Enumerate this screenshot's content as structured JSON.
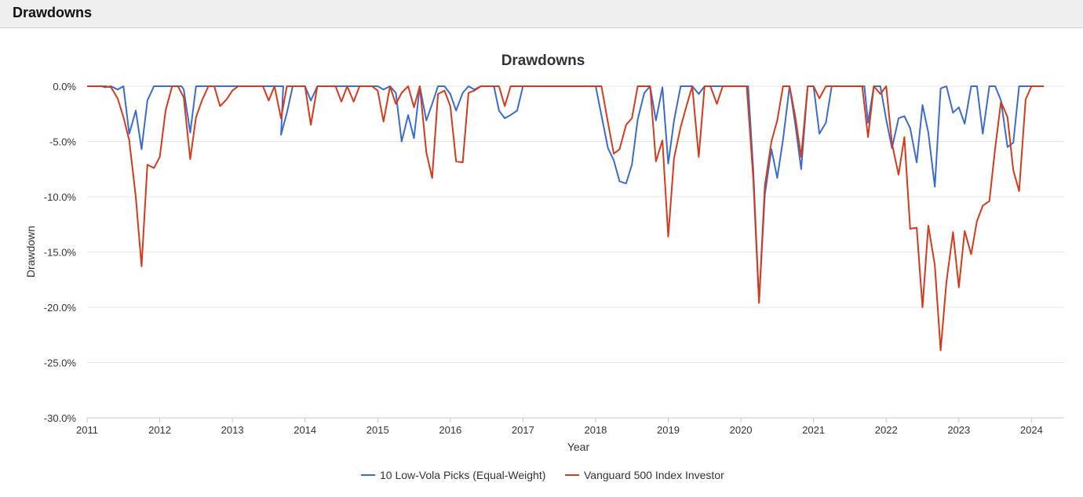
{
  "header": {
    "title": "Drawdowns"
  },
  "chart_data": {
    "type": "line",
    "title": "Drawdowns",
    "xlabel": "Year",
    "ylabel": "Drawdown",
    "ylim": [
      -30,
      0
    ],
    "yticks": [
      "0.0%",
      "-5.0%",
      "-10.0%",
      "-15.0%",
      "-20.0%",
      "-25.0%",
      "-30.0%"
    ],
    "xticks": [
      "2011",
      "2012",
      "2013",
      "2014",
      "2015",
      "2016",
      "2017",
      "2018",
      "2019",
      "2020",
      "2021",
      "2022",
      "2023",
      "2024"
    ],
    "legend_position": "bottom",
    "series": [
      {
        "name": "10 Low-Vola Picks (Equal-Weight)",
        "color": "#3a6ccf",
        "points": [
          [
            2011.0,
            0
          ],
          [
            2011.2,
            0
          ],
          [
            2011.25,
            -0.1
          ],
          [
            2011.33,
            0
          ],
          [
            2011.42,
            -0.3
          ],
          [
            2011.5,
            0
          ],
          [
            2011.58,
            -4.3
          ],
          [
            2011.67,
            -2.2
          ],
          [
            2011.75,
            -5.7
          ],
          [
            2011.83,
            -1.3
          ],
          [
            2011.92,
            0
          ],
          [
            2012.0,
            0
          ],
          [
            2012.3,
            0
          ],
          [
            2012.33,
            -0.3
          ],
          [
            2012.42,
            -4.2
          ],
          [
            2012.5,
            0
          ],
          [
            2012.6,
            0
          ],
          [
            2013.7,
            0
          ],
          [
            2013.67,
            -4.4
          ],
          [
            2013.75,
            -2.4
          ],
          [
            2013.83,
            0
          ],
          [
            2014.0,
            0
          ],
          [
            2014.08,
            -1.3
          ],
          [
            2014.17,
            0
          ],
          [
            2015.0,
            0
          ],
          [
            2015.08,
            -0.3
          ],
          [
            2015.17,
            0
          ],
          [
            2015.25,
            -0.6
          ],
          [
            2015.33,
            -5.0
          ],
          [
            2015.42,
            -2.6
          ],
          [
            2015.5,
            -4.7
          ],
          [
            2015.58,
            0
          ],
          [
            2015.67,
            -3.1
          ],
          [
            2015.75,
            -1.6
          ],
          [
            2015.83,
            0
          ],
          [
            2015.92,
            0
          ],
          [
            2016.0,
            -0.7
          ],
          [
            2016.08,
            -2.2
          ],
          [
            2016.17,
            -0.6
          ],
          [
            2016.25,
            0
          ],
          [
            2016.33,
            -0.3
          ],
          [
            2016.42,
            0
          ],
          [
            2016.6,
            0
          ],
          [
            2016.67,
            -2.2
          ],
          [
            2016.75,
            -2.9
          ],
          [
            2016.83,
            -2.6
          ],
          [
            2016.92,
            -2.2
          ],
          [
            2017.0,
            0
          ],
          [
            2018.0,
            0
          ],
          [
            2018.17,
            -5.6
          ],
          [
            2018.25,
            -6.7
          ],
          [
            2018.33,
            -8.6
          ],
          [
            2018.42,
            -8.8
          ],
          [
            2018.5,
            -7.1
          ],
          [
            2018.58,
            -3.0
          ],
          [
            2018.67,
            -0.6
          ],
          [
            2018.75,
            0
          ],
          [
            2018.83,
            -3.1
          ],
          [
            2018.92,
            -0.1
          ],
          [
            2019.0,
            -7.0
          ],
          [
            2019.08,
            -3.1
          ],
          [
            2019.17,
            0
          ],
          [
            2019.33,
            0
          ],
          [
            2019.42,
            -0.7
          ],
          [
            2019.5,
            0
          ],
          [
            2020.1,
            0
          ],
          [
            2020.17,
            -7.5
          ],
          [
            2020.25,
            -19.5
          ],
          [
            2020.33,
            -9.8
          ],
          [
            2020.42,
            -5.7
          ],
          [
            2020.5,
            -8.3
          ],
          [
            2020.58,
            -4.8
          ],
          [
            2020.67,
            0
          ],
          [
            2020.75,
            -3.5
          ],
          [
            2020.83,
            -7.5
          ],
          [
            2020.92,
            0
          ],
          [
            2021.0,
            0
          ],
          [
            2021.08,
            -4.3
          ],
          [
            2021.17,
            -3.3
          ],
          [
            2021.25,
            0
          ],
          [
            2021.7,
            0
          ],
          [
            2021.75,
            -3.3
          ],
          [
            2021.83,
            0
          ],
          [
            2021.92,
            0
          ],
          [
            2022.0,
            -3.0
          ],
          [
            2022.08,
            -5.6
          ],
          [
            2022.17,
            -2.9
          ],
          [
            2022.25,
            -2.7
          ],
          [
            2022.33,
            -3.8
          ],
          [
            2022.42,
            -6.9
          ],
          [
            2022.5,
            -1.7
          ],
          [
            2022.58,
            -4.2
          ],
          [
            2022.67,
            -9.1
          ],
          [
            2022.75,
            -0.2
          ],
          [
            2022.83,
            0
          ],
          [
            2022.92,
            -2.4
          ],
          [
            2023.0,
            -1.9
          ],
          [
            2023.08,
            -3.4
          ],
          [
            2023.17,
            0
          ],
          [
            2023.25,
            0
          ],
          [
            2023.33,
            -4.3
          ],
          [
            2023.42,
            0
          ],
          [
            2023.5,
            0
          ],
          [
            2023.58,
            -1.3
          ],
          [
            2023.67,
            -5.5
          ],
          [
            2023.75,
            -5.1
          ],
          [
            2023.83,
            0
          ],
          [
            2024.17,
            0
          ]
        ]
      },
      {
        "name": "Vanguard 500 Index Investor",
        "color": "#d63a1c",
        "points": [
          [
            2011.0,
            0
          ],
          [
            2011.25,
            0
          ],
          [
            2011.33,
            -0.1
          ],
          [
            2011.42,
            -1.1
          ],
          [
            2011.5,
            -2.8
          ],
          [
            2011.58,
            -4.9
          ],
          [
            2011.67,
            -10.0
          ],
          [
            2011.75,
            -16.3
          ],
          [
            2011.83,
            -7.1
          ],
          [
            2011.92,
            -7.4
          ],
          [
            2012.0,
            -6.4
          ],
          [
            2012.08,
            -2.2
          ],
          [
            2012.17,
            0
          ],
          [
            2012.25,
            0
          ],
          [
            2012.33,
            -1.0
          ],
          [
            2012.42,
            -6.6
          ],
          [
            2012.5,
            -2.8
          ],
          [
            2012.58,
            -1.3
          ],
          [
            2012.67,
            0
          ],
          [
            2012.75,
            0
          ],
          [
            2012.83,
            -1.8
          ],
          [
            2012.92,
            -1.2
          ],
          [
            2013.0,
            -0.4
          ],
          [
            2013.08,
            0
          ],
          [
            2013.42,
            0
          ],
          [
            2013.5,
            -1.3
          ],
          [
            2013.58,
            0
          ],
          [
            2013.67,
            -2.9
          ],
          [
            2013.75,
            0
          ],
          [
            2013.83,
            0
          ],
          [
            2014.0,
            0
          ],
          [
            2014.08,
            -3.5
          ],
          [
            2014.17,
            0
          ],
          [
            2014.42,
            0
          ],
          [
            2014.5,
            -1.4
          ],
          [
            2014.58,
            0
          ],
          [
            2014.67,
            -1.4
          ],
          [
            2014.75,
            0
          ],
          [
            2014.92,
            0
          ],
          [
            2015.0,
            -0.4
          ],
          [
            2015.08,
            -3.2
          ],
          [
            2015.17,
            0
          ],
          [
            2015.25,
            -1.6
          ],
          [
            2015.33,
            -0.6
          ],
          [
            2015.42,
            0
          ],
          [
            2015.5,
            -1.9
          ],
          [
            2015.58,
            0
          ],
          [
            2015.67,
            -6.0
          ],
          [
            2015.75,
            -8.3
          ],
          [
            2015.83,
            -0.7
          ],
          [
            2015.92,
            -0.4
          ],
          [
            2016.0,
            -1.8
          ],
          [
            2016.08,
            -6.8
          ],
          [
            2016.17,
            -6.9
          ],
          [
            2016.25,
            -0.6
          ],
          [
            2016.33,
            -0.4
          ],
          [
            2016.42,
            0
          ],
          [
            2016.67,
            0
          ],
          [
            2016.75,
            -1.8
          ],
          [
            2016.83,
            0
          ],
          [
            2018.0,
            0
          ],
          [
            2018.08,
            0
          ],
          [
            2018.17,
            -3.3
          ],
          [
            2018.25,
            -6.1
          ],
          [
            2018.33,
            -5.7
          ],
          [
            2018.42,
            -3.5
          ],
          [
            2018.5,
            -2.9
          ],
          [
            2018.58,
            0
          ],
          [
            2018.67,
            0
          ],
          [
            2018.75,
            0
          ],
          [
            2018.83,
            -6.8
          ],
          [
            2018.92,
            -4.9
          ],
          [
            2019.0,
            -13.6
          ],
          [
            2019.08,
            -6.5
          ],
          [
            2019.17,
            -3.7
          ],
          [
            2019.25,
            -1.8
          ],
          [
            2019.33,
            0
          ],
          [
            2019.42,
            -6.4
          ],
          [
            2019.5,
            0
          ],
          [
            2019.58,
            0
          ],
          [
            2019.67,
            -1.6
          ],
          [
            2019.75,
            0
          ],
          [
            2020.08,
            0
          ],
          [
            2020.17,
            -8.3
          ],
          [
            2020.25,
            -19.6
          ],
          [
            2020.33,
            -9.0
          ],
          [
            2020.42,
            -5.0
          ],
          [
            2020.5,
            -3.1
          ],
          [
            2020.58,
            0
          ],
          [
            2020.67,
            0
          ],
          [
            2020.75,
            -2.8
          ],
          [
            2020.83,
            -6.4
          ],
          [
            2020.92,
            0
          ],
          [
            2021.0,
            0
          ],
          [
            2021.08,
            -1.1
          ],
          [
            2021.17,
            0
          ],
          [
            2021.67,
            0
          ],
          [
            2021.75,
            -4.6
          ],
          [
            2021.83,
            0
          ],
          [
            2021.92,
            -0.7
          ],
          [
            2022.0,
            0
          ],
          [
            2022.08,
            -5.2
          ],
          [
            2022.17,
            -8.0
          ],
          [
            2022.25,
            -4.6
          ],
          [
            2022.33,
            -12.9
          ],
          [
            2022.42,
            -12.8
          ],
          [
            2022.5,
            -20.0
          ],
          [
            2022.58,
            -12.6
          ],
          [
            2022.67,
            -16.2
          ],
          [
            2022.75,
            -23.9
          ],
          [
            2022.83,
            -17.7
          ],
          [
            2022.92,
            -13.2
          ],
          [
            2023.0,
            -18.2
          ],
          [
            2023.08,
            -13.1
          ],
          [
            2023.17,
            -15.2
          ],
          [
            2023.25,
            -12.2
          ],
          [
            2023.33,
            -10.8
          ],
          [
            2023.42,
            -10.4
          ],
          [
            2023.5,
            -5.6
          ],
          [
            2023.58,
            -1.4
          ],
          [
            2023.67,
            -2.8
          ],
          [
            2023.75,
            -7.6
          ],
          [
            2023.83,
            -9.5
          ],
          [
            2023.92,
            -1.2
          ],
          [
            2024.0,
            0
          ],
          [
            2024.17,
            0
          ]
        ]
      }
    ]
  }
}
